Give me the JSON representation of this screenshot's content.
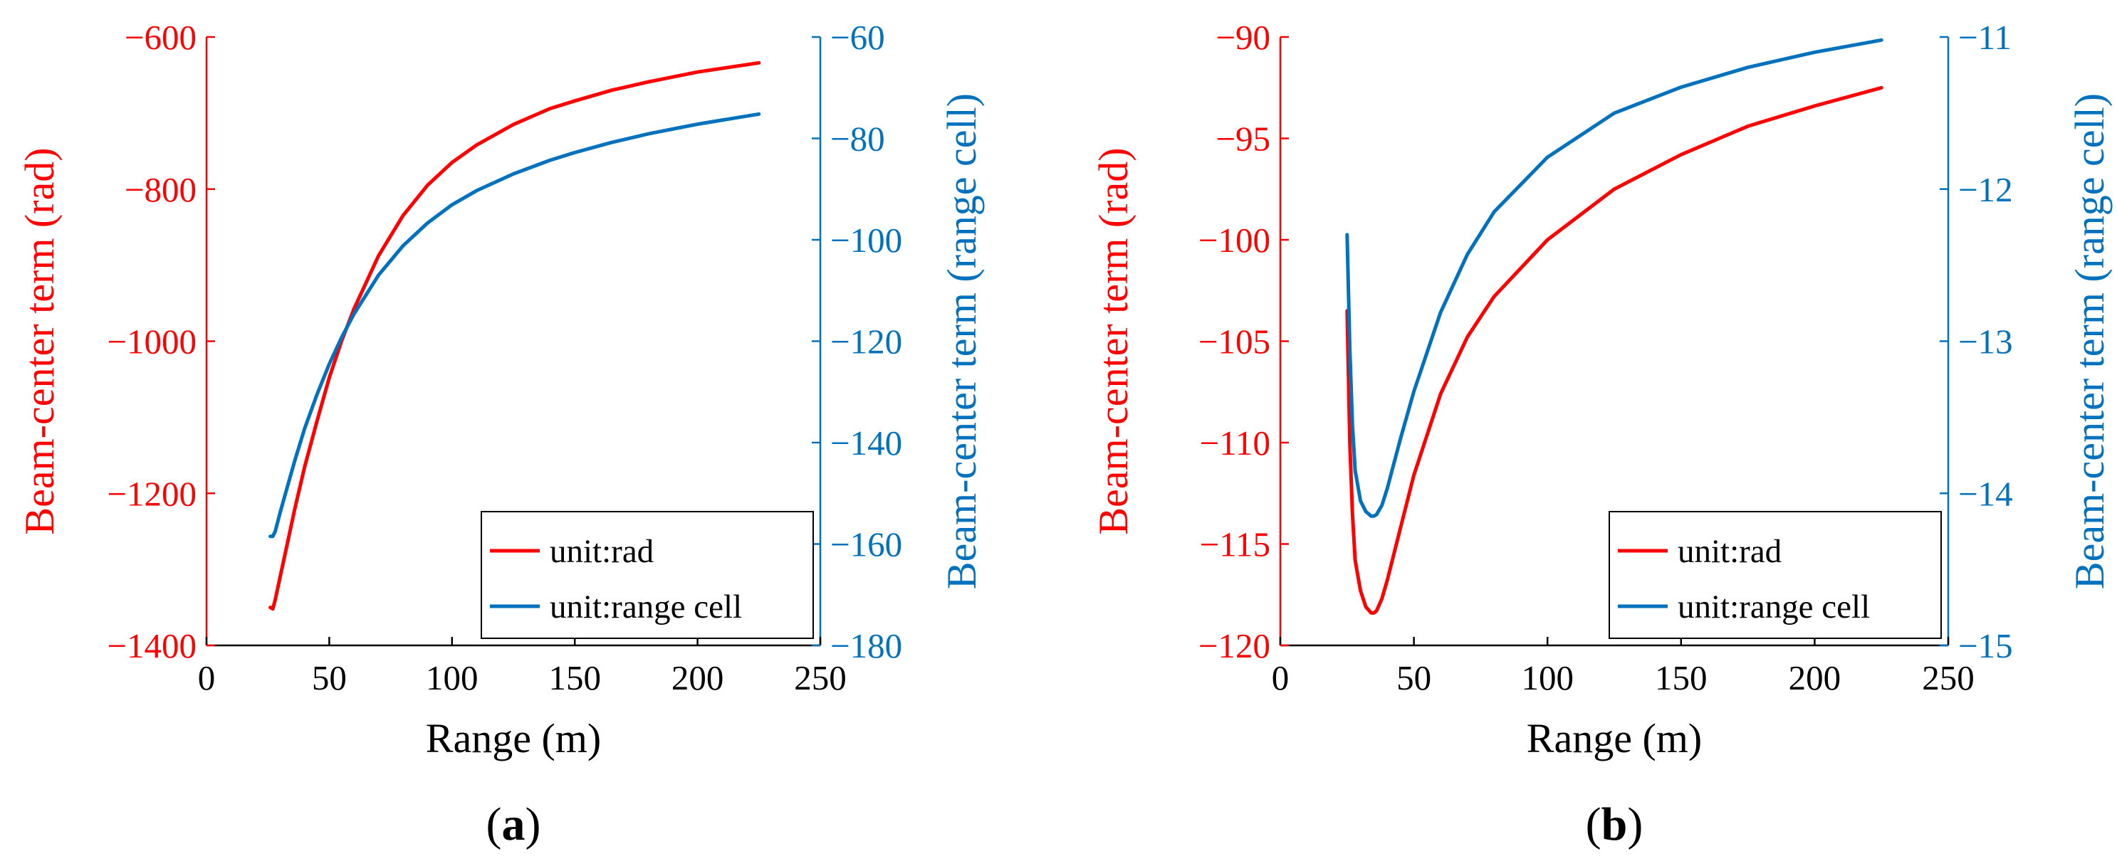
{
  "colors": {
    "rad": "#ff0000",
    "range_cell": "#0072bd",
    "axis": "#000000"
  },
  "chart_data": [
    {
      "type": "line",
      "panel_label": "a",
      "xlabel": "Range (m)",
      "ylabel_left": "Beam-center term (rad)",
      "ylabel_right": "Beam-center term (range cell)",
      "xlim": [
        0,
        250
      ],
      "ylim_left": [
        -1400,
        -600
      ],
      "ylim_right": [
        -180,
        -60
      ],
      "xticks": [
        "0",
        "50",
        "100",
        "150",
        "200",
        "250"
      ],
      "yticks_left": [
        "−600",
        "−800",
        "−1000",
        "−1200",
        "−1400"
      ],
      "yticks_right": [
        "−60",
        "−80",
        "−100",
        "−120",
        "−140",
        "−160",
        "−180"
      ],
      "legend": {
        "placement": "bottom-right",
        "entries": [
          "unit:rad",
          "unit:range cell"
        ]
      },
      "series": [
        {
          "name": "unit:rad",
          "axis": "left",
          "color": "#ff0000",
          "x": [
            26,
            27,
            28,
            30,
            33,
            36,
            40,
            45,
            50,
            55,
            60,
            70,
            80,
            90,
            100,
            110,
            125,
            140,
            150,
            165,
            180,
            200,
            225
          ],
          "y": [
            -1350,
            -1352,
            -1340,
            -1310,
            -1265,
            -1220,
            -1165,
            -1105,
            -1048,
            -1000,
            -958,
            -888,
            -835,
            -795,
            -765,
            -742,
            -715,
            -694,
            -684,
            -670,
            -659,
            -646,
            -634
          ]
        },
        {
          "name": "unit:range cell",
          "axis": "right",
          "color": "#0072bd",
          "x": [
            26,
            27,
            28,
            30,
            33,
            36,
            40,
            45,
            50,
            55,
            60,
            70,
            80,
            90,
            100,
            110,
            125,
            140,
            150,
            165,
            180,
            200,
            225
          ],
          "y": [
            -158.5,
            -158.5,
            -157.5,
            -153.8,
            -148.6,
            -143.5,
            -137.2,
            -130.5,
            -124.5,
            -119.3,
            -114.7,
            -107.0,
            -101.2,
            -96.7,
            -93.1,
            -90.3,
            -87.0,
            -84.3,
            -82.8,
            -80.8,
            -79.1,
            -77.2,
            -75.2
          ]
        }
      ]
    },
    {
      "type": "line",
      "panel_label": "b",
      "xlabel": "Range (m)",
      "ylabel_left": "Beam-center term (rad)",
      "ylabel_right": "Beam-center term (range cell)",
      "xlim": [
        0,
        250
      ],
      "ylim_left": [
        -120,
        -90
      ],
      "ylim_right": [
        -15,
        -11
      ],
      "xticks": [
        "0",
        "50",
        "100",
        "150",
        "200",
        "250"
      ],
      "yticks_left": [
        "−90",
        "−95",
        "−100",
        "−105",
        "−110",
        "−115",
        "−120"
      ],
      "yticks_right": [
        "−11",
        "−12",
        "−13",
        "−14",
        "−15"
      ],
      "legend": {
        "placement": "bottom-right",
        "entries": [
          "unit:rad",
          "unit:range cell"
        ]
      },
      "series": [
        {
          "name": "unit:rad",
          "axis": "left",
          "color": "#ff0000",
          "x": [
            25,
            26,
            27,
            28,
            30,
            32,
            34,
            35,
            36,
            38,
            40,
            45,
            50,
            60,
            70,
            80,
            100,
            125,
            150,
            175,
            200,
            225
          ],
          "y": [
            -103.5,
            -110.0,
            -113.5,
            -115.8,
            -117.3,
            -118.1,
            -118.4,
            -118.4,
            -118.3,
            -117.7,
            -116.8,
            -114.2,
            -111.6,
            -107.6,
            -104.8,
            -102.8,
            -100.0,
            -97.5,
            -95.8,
            -94.4,
            -93.4,
            -92.5
          ]
        },
        {
          "name": "unit:range cell",
          "axis": "right",
          "color": "#0072bd",
          "x": [
            25,
            26,
            27,
            28,
            30,
            32,
            34,
            35,
            36,
            38,
            40,
            45,
            50,
            60,
            70,
            80,
            100,
            125,
            150,
            175,
            200,
            225
          ],
          "y": [
            -12.3,
            -13.05,
            -13.55,
            -13.85,
            -14.05,
            -14.12,
            -14.15,
            -14.15,
            -14.14,
            -14.08,
            -13.97,
            -13.64,
            -13.33,
            -12.81,
            -12.43,
            -12.15,
            -11.79,
            -11.5,
            -11.33,
            -11.2,
            -11.1,
            -11.02
          ]
        }
      ]
    }
  ]
}
